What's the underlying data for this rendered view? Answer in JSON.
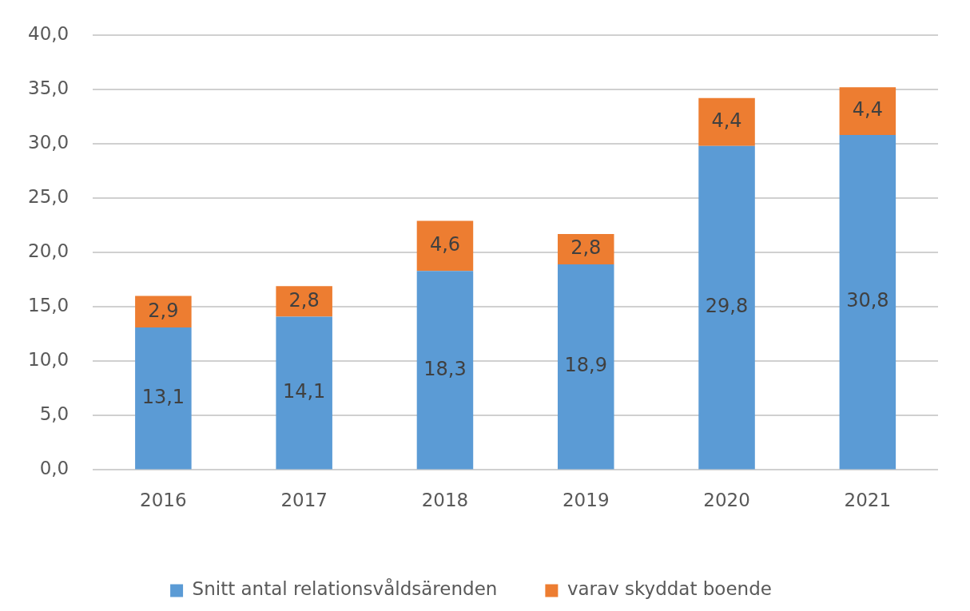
{
  "chart_data": {
    "type": "bar",
    "stacked": true,
    "categories": [
      "2016",
      "2017",
      "2018",
      "2019",
      "2020",
      "2021"
    ],
    "series": [
      {
        "name": "Snitt antal relationsvåldsärenden",
        "color": "#5b9bd5",
        "values": [
          13.1,
          14.1,
          18.3,
          18.9,
          29.8,
          30.8
        ],
        "value_labels": [
          "13,1",
          "14,1",
          "18,3",
          "18,9",
          "29,8",
          "30,8"
        ]
      },
      {
        "name": "varav skyddat boende",
        "color": "#ed7d31",
        "values": [
          2.9,
          2.8,
          4.6,
          2.8,
          4.4,
          4.4
        ],
        "value_labels": [
          "2,9",
          "2,8",
          "4,6",
          "2,8",
          "4,4",
          "4,4"
        ]
      }
    ],
    "ylim": [
      0,
      40
    ],
    "yticks": [
      {
        "value": 0,
        "label": "0,0"
      },
      {
        "value": 5,
        "label": "5,0"
      },
      {
        "value": 10,
        "label": "10,0"
      },
      {
        "value": 15,
        "label": "15,0"
      },
      {
        "value": 20,
        "label": "20,0"
      },
      {
        "value": 25,
        "label": "25,0"
      },
      {
        "value": 30,
        "label": "30,0"
      },
      {
        "value": 35,
        "label": "35,0"
      },
      {
        "value": 40,
        "label": "40,0"
      }
    ],
    "grid": "y",
    "legend": "bottom"
  }
}
